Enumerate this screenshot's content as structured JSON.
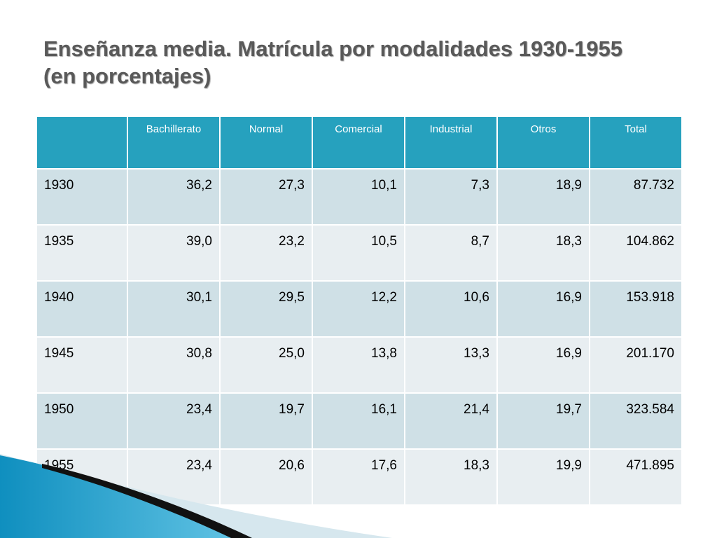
{
  "slide": {
    "title": "Enseñanza media. Matrícula por modalidades 1930-1955 (en porcentajes)"
  },
  "table": {
    "headers": [
      "",
      "Bachillerato",
      "Normal",
      "Comercial",
      "Industrial",
      "Otros",
      "Total"
    ],
    "rows": [
      [
        "1930",
        "36,2",
        "27,3",
        "10,1",
        "7,3",
        "18,9",
        "87.732"
      ],
      [
        "1935",
        "39,0",
        "23,2",
        "10,5",
        "8,7",
        "18,3",
        "104.862"
      ],
      [
        "1940",
        "30,1",
        "29,5",
        "12,2",
        "10,6",
        "16,9",
        "153.918"
      ],
      [
        "1945",
        "30,8",
        "25,0",
        "13,8",
        "13,3",
        "16,9",
        "201.170"
      ],
      [
        "1950",
        "23,4",
        "19,7",
        "16,1",
        "21,4",
        "19,7",
        "323.584"
      ],
      [
        "1955",
        "23,4",
        "20,6",
        "17,6",
        "18,3",
        "19,9",
        "471.895"
      ]
    ]
  },
  "colors": {
    "header_bg": "#26a1be",
    "row_odd_bg": "#cfe0e6",
    "row_even_bg": "#e8eef1",
    "title_color": "#595959",
    "accent_blue": "#1f9cc4"
  }
}
